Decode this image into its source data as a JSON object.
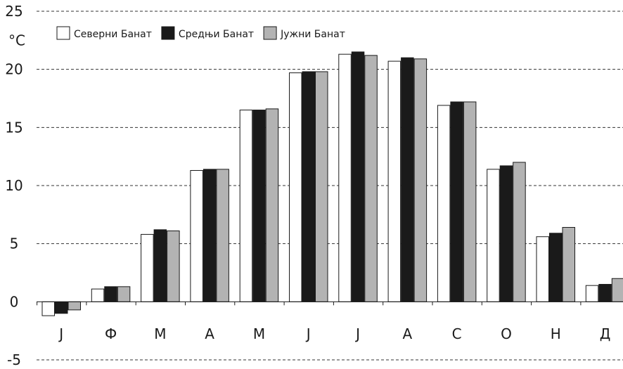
{
  "chart_data": {
    "type": "bar",
    "title": "",
    "xlabel": "",
    "ylabel": "°C",
    "ylim": [
      -5,
      25
    ],
    "yticks": [
      -5,
      0,
      5,
      10,
      15,
      20,
      25
    ],
    "grid": true,
    "legend_position": "top-left",
    "categories": [
      "J",
      "Ф",
      "M",
      "A",
      "M",
      "J",
      "J",
      "A",
      "C",
      "O",
      "H",
      "Д"
    ],
    "series": [
      {
        "name": "Северни Банат",
        "color": "#ffffff",
        "values": [
          -1.2,
          1.1,
          5.8,
          11.3,
          16.5,
          19.7,
          21.3,
          20.7,
          16.9,
          11.4,
          5.6,
          1.4
        ]
      },
      {
        "name": "Средњи Банат",
        "color": "#1a1a1a",
        "values": [
          -1.0,
          1.3,
          6.2,
          11.4,
          16.5,
          19.8,
          21.5,
          21.0,
          17.2,
          11.7,
          5.9,
          1.5
        ]
      },
      {
        "name": "Јужни Банат",
        "color": "#b3b3b3",
        "values": [
          -0.7,
          1.3,
          6.1,
          11.4,
          16.6,
          19.8,
          21.2,
          20.9,
          17.2,
          12.0,
          6.4,
          2.0
        ]
      }
    ]
  }
}
